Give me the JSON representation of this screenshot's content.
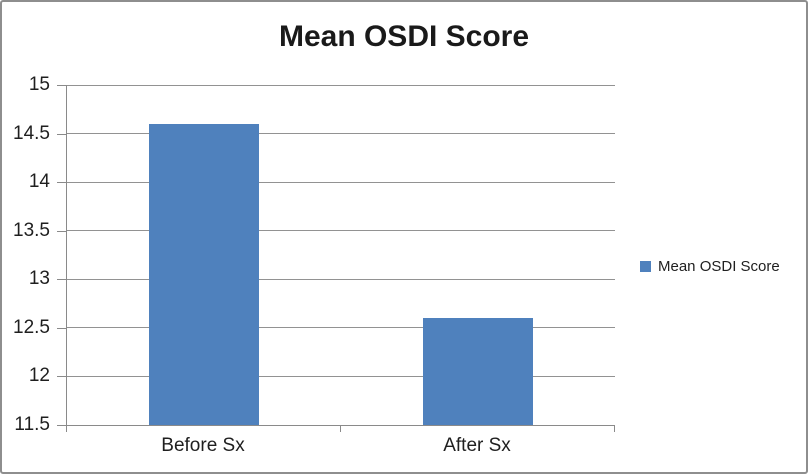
{
  "title": "Mean OSDI Score",
  "legend": {
    "position": "right",
    "items": [
      {
        "label": "Mean OSDI Score",
        "swatch_color": "#4f81bd"
      }
    ]
  },
  "chart_data": {
    "type": "bar",
    "title": "Mean OSDI Score",
    "categories": [
      "Before Sx",
      "After Sx"
    ],
    "series": [
      {
        "name": "Mean OSDI Score",
        "values": [
          14.6,
          12.6
        ],
        "color": "#4f81bd"
      }
    ],
    "xlabel": "",
    "ylabel": "",
    "ylim": [
      11.5,
      15
    ],
    "ytick_step": 0.5,
    "ytick_labels": [
      "15",
      "14.5",
      "14",
      "13.5",
      "13",
      "12.5",
      "12",
      "11.5"
    ],
    "grid": true,
    "gap_ratio": 2.5,
    "legend_position": "right"
  },
  "colors": {
    "bar": "#4f81bd",
    "axis": "#8a8a8a",
    "gridline": "#929292",
    "outer_border": "#8e8e8e",
    "text": "#1f1f1f"
  }
}
